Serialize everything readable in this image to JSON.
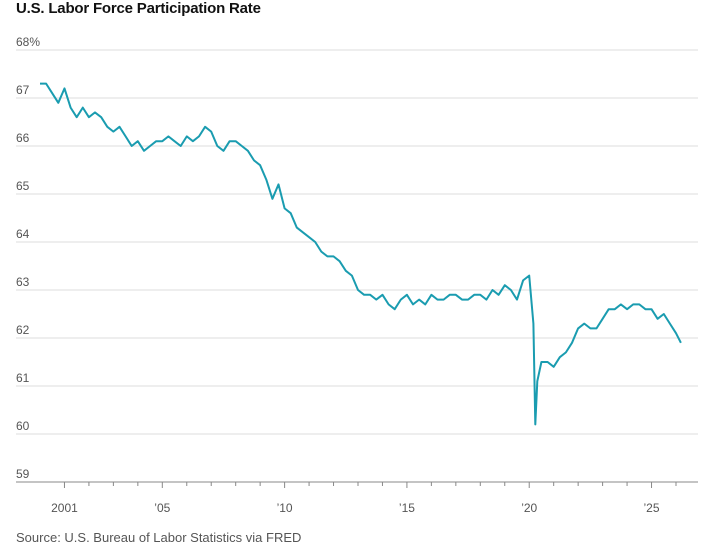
{
  "chart_data": {
    "type": "line",
    "title": "U.S. Labor Force Participation Rate",
    "source": "Source: U.S. Bureau of Labor Statistics via FRED",
    "ylim": [
      59,
      68
    ],
    "xlim": [
      2000.0,
      2026.9
    ],
    "y_ticks": [
      {
        "value": 68,
        "label": "68%"
      },
      {
        "value": 67,
        "label": "67"
      },
      {
        "value": 66,
        "label": "66"
      },
      {
        "value": 65,
        "label": "65"
      },
      {
        "value": 64,
        "label": "64"
      },
      {
        "value": 63,
        "label": "63"
      },
      {
        "value": 62,
        "label": "62"
      },
      {
        "value": 61,
        "label": "61"
      },
      {
        "value": 60,
        "label": "60"
      },
      {
        "value": 59,
        "label": "59"
      }
    ],
    "x_tick_labels": [
      {
        "value": 2001,
        "label": "2001"
      },
      {
        "value": 2005,
        "label": "’05"
      },
      {
        "value": 2010,
        "label": "’10"
      },
      {
        "value": 2015,
        "label": "’15"
      },
      {
        "value": 2020,
        "label": "’20"
      },
      {
        "value": 2025,
        "label": "’25"
      }
    ],
    "x_minor_ticks": [
      2002,
      2003,
      2004,
      2006,
      2007,
      2008,
      2009,
      2011,
      2012,
      2013,
      2014,
      2016,
      2017,
      2018,
      2019,
      2021,
      2022,
      2023,
      2024,
      2026
    ],
    "series": [
      {
        "name": "Labor force participation rate",
        "color": "#1a9cb0",
        "x": [
          2000.0,
          2000.25,
          2000.5,
          2000.75,
          2001.0,
          2001.25,
          2001.5,
          2001.75,
          2002.0,
          2002.25,
          2002.5,
          2002.75,
          2003.0,
          2003.25,
          2003.5,
          2003.75,
          2004.0,
          2004.25,
          2004.5,
          2004.75,
          2005.0,
          2005.25,
          2005.5,
          2005.75,
          2006.0,
          2006.25,
          2006.5,
          2006.75,
          2007.0,
          2007.25,
          2007.5,
          2007.75,
          2008.0,
          2008.25,
          2008.5,
          2008.75,
          2009.0,
          2009.25,
          2009.5,
          2009.75,
          2010.0,
          2010.25,
          2010.5,
          2010.75,
          2011.0,
          2011.25,
          2011.5,
          2011.75,
          2012.0,
          2012.25,
          2012.5,
          2012.75,
          2013.0,
          2013.25,
          2013.5,
          2013.75,
          2014.0,
          2014.25,
          2014.5,
          2014.75,
          2015.0,
          2015.25,
          2015.5,
          2015.75,
          2016.0,
          2016.25,
          2016.5,
          2016.75,
          2017.0,
          2017.25,
          2017.5,
          2017.75,
          2018.0,
          2018.25,
          2018.5,
          2018.75,
          2019.0,
          2019.25,
          2019.5,
          2019.75,
          2020.0,
          2020.17,
          2020.25,
          2020.33,
          2020.5,
          2020.75,
          2021.0,
          2021.25,
          2021.5,
          2021.75,
          2022.0,
          2022.25,
          2022.5,
          2022.75,
          2023.0,
          2023.25,
          2023.5,
          2023.75,
          2024.0,
          2024.25,
          2024.5,
          2024.75,
          2025.0,
          2025.25,
          2025.5,
          2025.75,
          2026.0,
          2026.2
        ],
        "values": [
          67.3,
          67.3,
          67.1,
          66.9,
          67.2,
          66.8,
          66.6,
          66.8,
          66.6,
          66.7,
          66.6,
          66.4,
          66.3,
          66.4,
          66.2,
          66.0,
          66.1,
          65.9,
          66.0,
          66.1,
          66.1,
          66.2,
          66.1,
          66.0,
          66.2,
          66.1,
          66.2,
          66.4,
          66.3,
          66.0,
          65.9,
          66.1,
          66.1,
          66.0,
          65.9,
          65.7,
          65.6,
          65.3,
          64.9,
          65.2,
          64.7,
          64.6,
          64.3,
          64.2,
          64.1,
          64.0,
          63.8,
          63.7,
          63.7,
          63.6,
          63.4,
          63.3,
          63.0,
          62.9,
          62.9,
          62.8,
          62.9,
          62.7,
          62.6,
          62.8,
          62.9,
          62.7,
          62.8,
          62.7,
          62.9,
          62.8,
          62.8,
          62.9,
          62.9,
          62.8,
          62.8,
          62.9,
          62.9,
          62.8,
          63.0,
          62.9,
          63.1,
          63.0,
          62.8,
          63.2,
          63.3,
          62.3,
          60.2,
          61.1,
          61.5,
          61.5,
          61.4,
          61.6,
          61.7,
          61.9,
          62.2,
          62.3,
          62.2,
          62.2,
          62.4,
          62.6,
          62.6,
          62.7,
          62.6,
          62.7,
          62.7,
          62.6,
          62.6,
          62.4,
          62.5,
          62.3,
          62.1,
          61.9
        ]
      }
    ]
  }
}
